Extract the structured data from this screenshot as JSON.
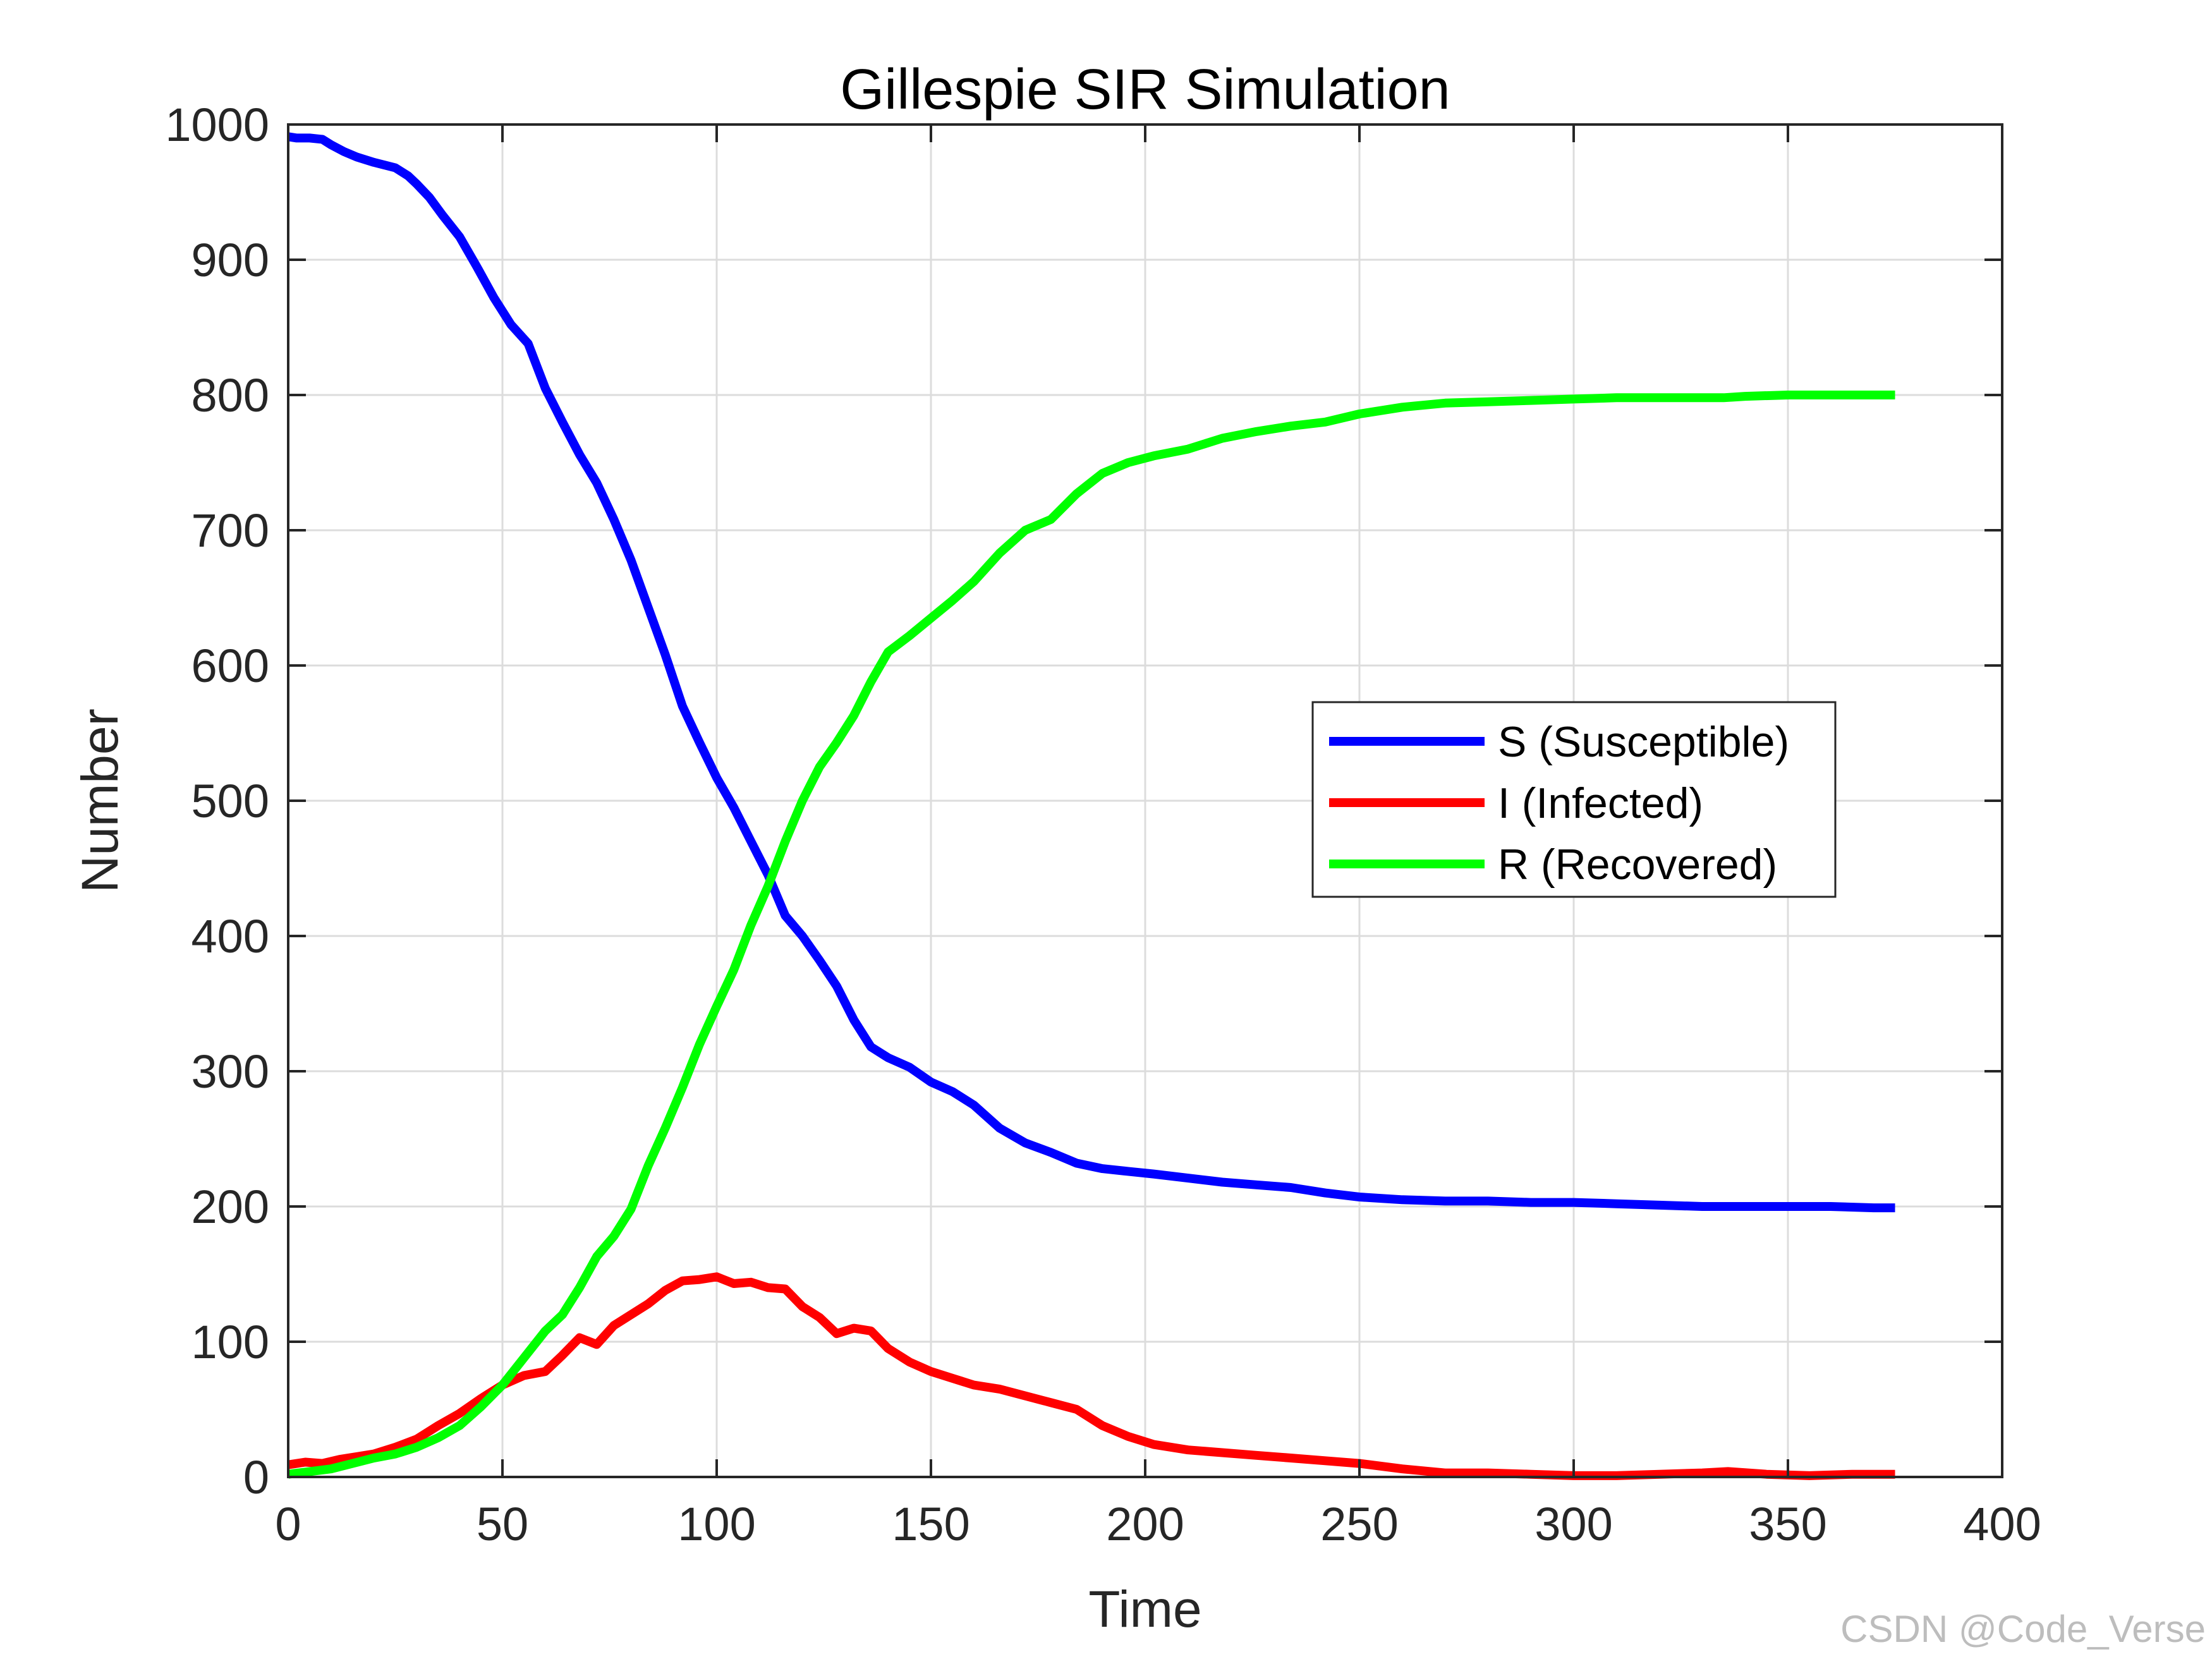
{
  "watermark": "CSDN @Code_Verse",
  "chart_data": {
    "type": "line",
    "title": "Gillespie SIR Simulation",
    "xlabel": "Time",
    "ylabel": "Number",
    "xlim": [
      0,
      400
    ],
    "ylim": [
      0,
      1000
    ],
    "xticks": [
      0,
      50,
      100,
      150,
      200,
      250,
      300,
      350,
      400
    ],
    "yticks": [
      0,
      100,
      200,
      300,
      400,
      500,
      600,
      700,
      800,
      900,
      1000
    ],
    "grid": true,
    "legend_position": "right-middle",
    "series": [
      {
        "name": "S (Susceptible)",
        "color": "#0000ff",
        "x": [
          0,
          2,
          5,
          8,
          10,
          13,
          16,
          20,
          25,
          28,
          30,
          33,
          36,
          40,
          44,
          48,
          52,
          56,
          60,
          64,
          68,
          72,
          76,
          80,
          84,
          88,
          92,
          96,
          100,
          104,
          108,
          112,
          116,
          120,
          124,
          128,
          132,
          136,
          140,
          145,
          150,
          155,
          160,
          166,
          172,
          178,
          184,
          190,
          196,
          202,
          210,
          218,
          226,
          234,
          242,
          250,
          260,
          270,
          280,
          290,
          300,
          310,
          320,
          330,
          340,
          350,
          360,
          370,
          375
        ],
        "y": [
          991,
          990,
          990,
          989,
          985,
          980,
          976,
          972,
          968,
          962,
          956,
          946,
          933,
          917,
          895,
          872,
          852,
          838,
          805,
          780,
          756,
          735,
          708,
          678,
          643,
          608,
          570,
          543,
          517,
          495,
          470,
          445,
          415,
          400,
          382,
          363,
          338,
          318,
          310,
          303,
          292,
          285,
          275,
          258,
          247,
          240,
          232,
          228,
          226,
          224,
          221,
          218,
          216,
          214,
          210,
          207,
          205,
          204,
          204,
          203,
          203,
          202,
          201,
          200,
          200,
          200,
          200,
          199,
          199
        ]
      },
      {
        "name": "I (Infected)",
        "color": "#ff0000",
        "x": [
          0,
          4,
          8,
          12,
          16,
          20,
          25,
          30,
          35,
          40,
          45,
          50,
          55,
          60,
          64,
          68,
          72,
          76,
          80,
          84,
          88,
          92,
          96,
          100,
          104,
          108,
          112,
          116,
          120,
          124,
          128,
          132,
          136,
          140,
          145,
          150,
          155,
          160,
          166,
          172,
          178,
          184,
          190,
          196,
          202,
          210,
          218,
          226,
          234,
          242,
          250,
          260,
          270,
          280,
          290,
          300,
          310,
          320,
          330,
          336,
          345,
          355,
          365,
          375
        ],
        "y": [
          9,
          11,
          10,
          13,
          15,
          17,
          22,
          28,
          38,
          47,
          58,
          68,
          75,
          78,
          90,
          103,
          98,
          112,
          120,
          128,
          138,
          145,
          146,
          148,
          143,
          144,
          140,
          139,
          126,
          118,
          106,
          110,
          108,
          95,
          85,
          78,
          73,
          68,
          65,
          60,
          55,
          50,
          38,
          30,
          24,
          20,
          18,
          16,
          14,
          12,
          10,
          6,
          3,
          3,
          2,
          1,
          1,
          2,
          3,
          4,
          2,
          1,
          2,
          2
        ]
      },
      {
        "name": "R (Recovered)",
        "color": "#00ff00",
        "x": [
          0,
          5,
          10,
          15,
          20,
          25,
          30,
          35,
          40,
          45,
          50,
          55,
          60,
          64,
          68,
          72,
          76,
          80,
          84,
          88,
          92,
          96,
          100,
          104,
          108,
          112,
          116,
          120,
          124,
          128,
          132,
          136,
          140,
          145,
          150,
          155,
          160,
          166,
          172,
          178,
          184,
          190,
          196,
          202,
          210,
          218,
          226,
          234,
          242,
          250,
          260,
          270,
          280,
          290,
          300,
          310,
          320,
          330,
          335,
          340,
          350,
          360,
          370,
          375
        ],
        "y": [
          2,
          4,
          6,
          10,
          14,
          17,
          22,
          29,
          38,
          52,
          68,
          88,
          108,
          120,
          140,
          163,
          178,
          198,
          230,
          258,
          288,
          320,
          348,
          375,
          408,
          437,
          470,
          500,
          525,
          543,
          563,
          588,
          610,
          622,
          635,
          648,
          662,
          683,
          700,
          708,
          727,
          742,
          750,
          755,
          760,
          768,
          773,
          777,
          780,
          786,
          791,
          794,
          795,
          796,
          797,
          798,
          798,
          798,
          798,
          799,
          800,
          800,
          800,
          800
        ]
      }
    ]
  }
}
